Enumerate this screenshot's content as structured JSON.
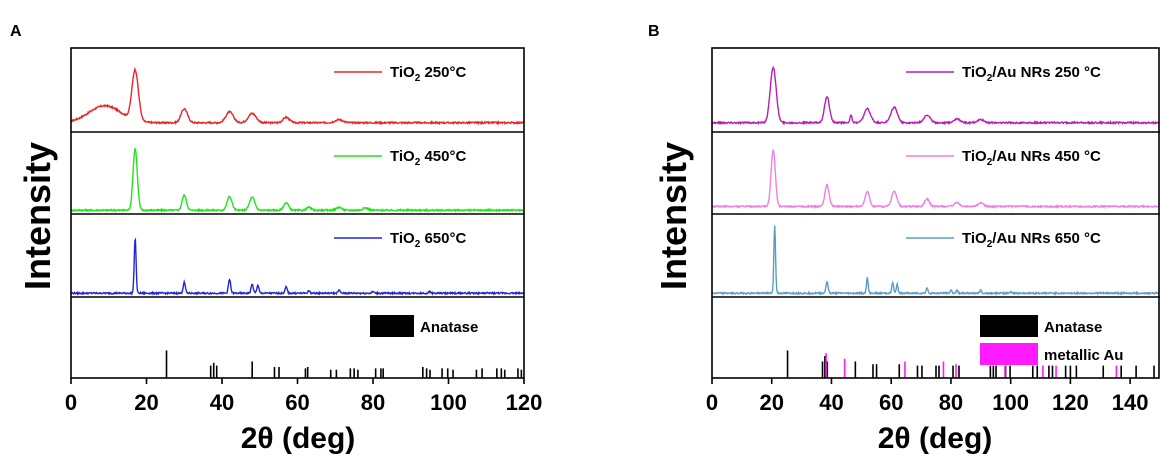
{
  "chart_data": [
    {
      "panel": "A",
      "type": "line",
      "xlabel": "2θ (deg)",
      "ylabel": "Intensity",
      "xlim": [
        0,
        120
      ],
      "xticks": [
        0,
        20,
        40,
        60,
        80,
        100,
        120
      ],
      "series": [
        {
          "name": "TiO2 250°C",
          "name_base": "TiO",
          "name_sub": "2",
          "name_rest": " 250°C",
          "color": "#e8262b",
          "baseline": 0.12,
          "hump": {
            "center": 9,
            "width": 6,
            "height": 0.22
          },
          "peaks": [
            [
              17,
              0.65,
              1.2
            ],
            [
              30,
              0.18,
              1.2
            ],
            [
              42,
              0.14,
              1.4
            ],
            [
              48,
              0.12,
              1.5
            ],
            [
              57,
              0.07,
              1.2
            ],
            [
              71,
              0.04,
              1.5
            ]
          ]
        },
        {
          "name": "TiO2 450°C",
          "name_base": "TiO",
          "name_sub": "2",
          "name_rest": " 450°C",
          "color": "#22e31a",
          "baseline": 0.05,
          "hump": null,
          "peaks": [
            [
              17,
              0.82,
              0.8
            ],
            [
              30,
              0.2,
              0.8
            ],
            [
              42,
              0.18,
              0.9
            ],
            [
              48,
              0.17,
              1.0
            ],
            [
              57,
              0.1,
              0.9
            ],
            [
              63,
              0.04,
              0.8
            ],
            [
              71,
              0.04,
              1.0
            ],
            [
              78,
              0.03,
              1.0
            ]
          ]
        },
        {
          "name": "TiO2 650°C",
          "name_base": "TiO",
          "name_sub": "2",
          "name_rest": " 650°C",
          "color": "#2424d8",
          "baseline": 0.05,
          "hump": null,
          "peaks": [
            [
              17,
              0.72,
              0.35
            ],
            [
              30,
              0.14,
              0.4
            ],
            [
              42,
              0.18,
              0.4
            ],
            [
              48,
              0.12,
              0.4
            ],
            [
              49.5,
              0.1,
              0.4
            ],
            [
              57,
              0.08,
              0.4
            ],
            [
              63,
              0.03,
              0.4
            ],
            [
              71,
              0.04,
              0.4
            ],
            [
              80,
              0.02,
              0.4
            ],
            [
              95,
              0.02,
              0.4
            ]
          ]
        }
      ],
      "reference": [
        {
          "name": "Anatase",
          "color": "#000000",
          "lines": [
            [
              25.3,
              1.0
            ],
            [
              37.0,
              0.45
            ],
            [
              37.8,
              0.55
            ],
            [
              38.6,
              0.45
            ],
            [
              48.0,
              0.6
            ],
            [
              53.9,
              0.4
            ],
            [
              55.1,
              0.4
            ],
            [
              62.1,
              0.35
            ],
            [
              62.7,
              0.4
            ],
            [
              68.8,
              0.3
            ],
            [
              70.3,
              0.3
            ],
            [
              74.0,
              0.35
            ],
            [
              75.0,
              0.35
            ],
            [
              76.0,
              0.3
            ],
            [
              80.7,
              0.35
            ],
            [
              82.1,
              0.35
            ],
            [
              82.7,
              0.35
            ],
            [
              93.2,
              0.4
            ],
            [
              94.2,
              0.35
            ],
            [
              95.1,
              0.3
            ],
            [
              98.3,
              0.35
            ],
            [
              99.8,
              0.35
            ],
            [
              101.2,
              0.3
            ],
            [
              107.4,
              0.3
            ],
            [
              108.9,
              0.35
            ],
            [
              112.8,
              0.35
            ],
            [
              114.0,
              0.35
            ],
            [
              114.9,
              0.3
            ],
            [
              118.4,
              0.35
            ],
            [
              119.3,
              0.3
            ]
          ]
        }
      ]
    },
    {
      "panel": "B",
      "type": "line",
      "xlabel": "2θ (deg)",
      "ylabel": "Intensity",
      "xlim": [
        0,
        150
      ],
      "xticks": [
        0,
        20,
        40,
        60,
        80,
        100,
        120,
        140
      ],
      "series": [
        {
          "name": "TiO2/Au NRs 250 °C",
          "name_base": "TiO",
          "name_sub": "2",
          "name_rest": "/Au NRs 250 °C",
          "color": "#b51fb3",
          "baseline": 0.12,
          "hump": null,
          "peaks": [
            [
              20.5,
              0.72,
              1.4
            ],
            [
              38.5,
              0.33,
              1.2
            ],
            [
              46.5,
              0.1,
              0.5
            ],
            [
              52,
              0.18,
              1.5
            ],
            [
              61,
              0.2,
              1.5
            ],
            [
              72,
              0.1,
              1.5
            ],
            [
              82,
              0.05,
              1.5
            ],
            [
              90,
              0.04,
              1.5
            ]
          ]
        },
        {
          "name": "TiO2/Au NRs 450 °C",
          "name_base": "TiO",
          "name_sub": "2",
          "name_rest": "/Au NRs 450 °C",
          "color": "#ef7fe0",
          "baseline": 0.1,
          "hump": null,
          "peaks": [
            [
              20.5,
              0.75,
              1.0
            ],
            [
              38.5,
              0.28,
              1.0
            ],
            [
              52,
              0.2,
              1.0
            ],
            [
              61,
              0.2,
              1.2
            ],
            [
              72,
              0.1,
              1.1
            ],
            [
              82,
              0.05,
              1.2
            ],
            [
              90,
              0.05,
              1.2
            ]
          ]
        },
        {
          "name": "TiO2/Au NRs 650 °C",
          "name_base": "TiO",
          "name_sub": "2",
          "name_rest": "/Au NRs 650 °C",
          "color": "#5a9dc9",
          "baseline": 0.05,
          "hump": null,
          "peaks": [
            [
              21,
              0.88,
              0.4
            ],
            [
              38.5,
              0.15,
              0.5
            ],
            [
              52,
              0.2,
              0.4
            ],
            [
              60.5,
              0.14,
              0.4
            ],
            [
              62,
              0.12,
              0.4
            ],
            [
              72,
              0.07,
              0.4
            ],
            [
              80,
              0.04,
              0.4
            ],
            [
              82,
              0.04,
              0.4
            ],
            [
              90,
              0.04,
              0.4
            ],
            [
              100,
              0.02,
              0.4
            ]
          ]
        }
      ],
      "reference": [
        {
          "name": "Anatase",
          "color": "#000000",
          "lines": [
            [
              25.3,
              1.0
            ],
            [
              37.0,
              0.6
            ],
            [
              37.8,
              0.8
            ],
            [
              38.6,
              0.6
            ],
            [
              48.0,
              0.6
            ],
            [
              53.9,
              0.5
            ],
            [
              55.1,
              0.5
            ],
            [
              62.7,
              0.5
            ],
            [
              68.8,
              0.45
            ],
            [
              70.3,
              0.45
            ],
            [
              75.0,
              0.45
            ],
            [
              76.0,
              0.45
            ],
            [
              80.7,
              0.45
            ],
            [
              82.7,
              0.45
            ],
            [
              93.2,
              0.45
            ],
            [
              94.2,
              0.45
            ],
            [
              95.1,
              0.45
            ],
            [
              98.3,
              0.45
            ],
            [
              99.8,
              0.45
            ],
            [
              107.4,
              0.45
            ],
            [
              108.9,
              0.45
            ],
            [
              112.8,
              0.45
            ],
            [
              114.0,
              0.45
            ],
            [
              118.4,
              0.45
            ],
            [
              120.0,
              0.45
            ],
            [
              122.0,
              0.45
            ],
            [
              131.0,
              0.45
            ],
            [
              137.0,
              0.45
            ],
            [
              142.0,
              0.45
            ],
            [
              148.0,
              0.45
            ]
          ]
        },
        {
          "name": "metallic Au",
          "color": "#ff1aff",
          "lines": [
            [
              38.2,
              0.9
            ],
            [
              44.4,
              0.7
            ],
            [
              64.6,
              0.6
            ],
            [
              77.5,
              0.6
            ],
            [
              81.7,
              0.5
            ],
            [
              98.1,
              0.45
            ],
            [
              110.8,
              0.45
            ],
            [
              115.2,
              0.45
            ],
            [
              135.4,
              0.45
            ]
          ]
        }
      ]
    }
  ]
}
